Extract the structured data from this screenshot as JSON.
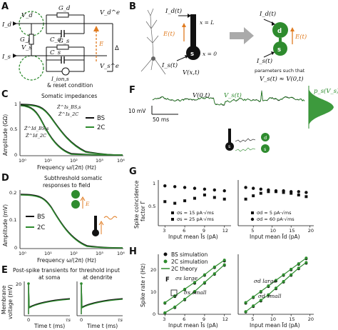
{
  "panels": {
    "A": {
      "letter": "A",
      "i_d": "I_d",
      "i_s": "I_s",
      "v_d": "V_d",
      "v_s": "V_s",
      "g_d": "G_d",
      "c_d": "C_d",
      "g_j": "G_j",
      "g_s": "G_s",
      "c_s": "C_s",
      "v_de": "V_d^e",
      "v_se": "V_s^e",
      "e_label": "E",
      "delta": "Δ",
      "i_ion": "I_ion,s",
      "reset": "& reset condition"
    },
    "B": {
      "letter": "B",
      "id_t": "I_d(t)",
      "x_L": "x = L",
      "e_t": "E(t)",
      "is_t": "I_s(t)",
      "x_0": "x = 0",
      "d": "d",
      "s": "s",
      "v_xt": "V(x,t)",
      "params_line1": "parameters such that",
      "params_line2": "V_s(t) ≈ V(0,t)"
    },
    "C": {
      "letter": "C",
      "title": "Somatic impedances",
      "ylabel": "Amplitude (GΩ)",
      "xlabel": "Frequency ω/(2π) (Hz)",
      "legend": [
        "BS",
        "2C"
      ],
      "curve_labels": [
        "Ẑ^Is_BS,s",
        "Ẑ^Is_2C",
        "Ẑ^Id_BS,s",
        "Ẑ^Id_2C"
      ],
      "yticks": [
        "0",
        "0.5",
        "1"
      ],
      "xticks": [
        "10⁰",
        "10¹",
        "10²",
        "10³",
        "10⁴"
      ]
    },
    "D": {
      "letter": "D",
      "title_line1": "Subthreshold somatic",
      "title_line2": "responses to field",
      "ylabel": "Amplitude (mV)",
      "xlabel": "Frequency ω/(2π) (Hz)",
      "legend": [
        "BS",
        "2C"
      ],
      "yticks": [
        "0",
        "0.1",
        "0.2"
      ],
      "xticks": [
        "10⁰",
        "10¹",
        "10²",
        "10³",
        "10⁴"
      ],
      "e_label": "E"
    },
    "E": {
      "letter": "E",
      "title_line1": "Post-spike transients for threshold input",
      "left_label": "at soma",
      "right_label": "at dendrite",
      "ylabel_line1": "Membrane",
      "ylabel_line2": "voltage (mV)",
      "xlabel": "Time t (ms)",
      "xticks": [
        "0",
        "τs"
      ],
      "ytick": "20"
    },
    "F": {
      "letter": "F",
      "v0t": "V(0,t)",
      "vs": "V_s(t)",
      "ps": "p_s(V_s)",
      "scale_v": "10 mV",
      "scale_t": "50 ms",
      "d": "d",
      "s": "s"
    },
    "G": {
      "letter": "G",
      "ylabel_line1": "Spike coincidence",
      "ylabel_line2": "factor Γ",
      "xlabel_left": "Input mean Īs (pA)",
      "xlabel_right": "Input mean Īd (pA)",
      "left_legend": [
        "σs = 15 pA·√ms",
        "σs = 25 pA·√ms"
      ],
      "right_legend": [
        "σd = 5 pA·√ms",
        "σd = 60 pA·√ms"
      ],
      "yticks": [
        "0.5",
        "1"
      ],
      "left_xticks": [
        "3",
        "6",
        "9",
        "12"
      ],
      "right_xticks": [
        "5",
        "10",
        "15",
        "20"
      ]
    },
    "H": {
      "letter": "H",
      "ylabel": "Spike rate r (Hz)",
      "xlabel_left": "Input mean Īs (pA)",
      "xlabel_right": "Input mean Īd (pA)",
      "legend": [
        "BS simulation",
        "2C simulation",
        "2C theory"
      ],
      "left_annot": [
        "σs large",
        "σs small"
      ],
      "right_annot": [
        "σd large",
        "σd small"
      ],
      "f_marker": "F",
      "yticks": [
        "0",
        "10",
        "20"
      ],
      "left_xticks": [
        "3",
        "6",
        "9",
        "12"
      ],
      "right_xticks": [
        "5",
        "10",
        "15",
        "20"
      ]
    }
  },
  "chart_data": [
    {
      "panel": "G-left",
      "type": "scatter",
      "xlabel": "Input mean Īs (pA)",
      "ylabel": "Spike coincidence factor Γ",
      "ylim": [
        0.45,
        1.0
      ],
      "series": [
        {
          "name": "σs = 15 pA·√ms",
          "marker": "square",
          "x": [
            3,
            4.5,
            6,
            7.5,
            9,
            10.5,
            12
          ],
          "y": [
            0.74,
            0.72,
            0.75,
            0.78,
            0.82,
            0.79,
            0.77
          ]
        },
        {
          "name": "σs = 25 pA·√ms",
          "marker": "circle",
          "x": [
            3,
            4.5,
            6,
            7.5,
            9,
            10.5,
            12
          ],
          "y": [
            0.93,
            0.92,
            0.91,
            0.9,
            0.89,
            0.88,
            0.87
          ]
        }
      ]
    },
    {
      "panel": "G-right",
      "type": "scatter",
      "xlabel": "Input mean Īd (pA)",
      "ylabel": "Spike coincidence factor Γ",
      "ylim": [
        0.45,
        1.0
      ],
      "series": [
        {
          "name": "σd = 5 pA·√ms",
          "marker": "square",
          "x": [
            3,
            5,
            7,
            9,
            11,
            13,
            15,
            17,
            19
          ],
          "y": [
            0.77,
            0.81,
            0.84,
            0.86,
            0.86,
            0.85,
            0.84,
            0.82,
            0.8
          ]
        },
        {
          "name": "σd = 60 pA·√ms",
          "marker": "circle",
          "x": [
            3,
            5,
            7,
            9,
            11,
            13,
            15,
            17,
            19
          ],
          "y": [
            0.91,
            0.9,
            0.89,
            0.88,
            0.87,
            0.87,
            0.86,
            0.86,
            0.85
          ]
        }
      ]
    },
    {
      "panel": "H-left",
      "type": "line",
      "xlabel": "Input mean Īs (pA)",
      "ylabel": "Spike rate r (Hz)",
      "ylim": [
        0,
        27
      ],
      "series": [
        {
          "name": "BS simulation (σs large)",
          "x": [
            3,
            4.5,
            6,
            7.5,
            9,
            10.5,
            12
          ],
          "y": [
            5,
            8,
            11,
            14,
            17.5,
            21,
            24
          ]
        },
        {
          "name": "2C simulation (σs large)",
          "x": [
            3,
            4.5,
            6,
            7.5,
            9,
            10.5,
            12
          ],
          "y": [
            5.2,
            8.3,
            11.3,
            14.4,
            17.8,
            21.3,
            24.4
          ]
        },
        {
          "name": "BS simulation (σs small)",
          "x": [
            3,
            4.5,
            6,
            7.5,
            9,
            10.5,
            12
          ],
          "y": [
            0.5,
            3,
            6.5,
            10,
            14,
            18,
            22
          ]
        },
        {
          "name": "2C simulation (σs small)",
          "x": [
            3,
            4.5,
            6,
            7.5,
            9,
            10.5,
            12
          ],
          "y": [
            0.7,
            3.3,
            6.8,
            10.3,
            14.3,
            18.3,
            22.3
          ]
        }
      ]
    },
    {
      "panel": "H-right",
      "type": "line",
      "xlabel": "Input mean Īd (pA)",
      "ylabel": "Spike rate r (Hz)",
      "ylim": [
        0,
        27
      ],
      "series": [
        {
          "name": "BS simulation (σd large)",
          "x": [
            3,
            5,
            7,
            9,
            11,
            13,
            15,
            17,
            19
          ],
          "y": [
            5,
            7.5,
            10,
            12.5,
            15,
            17.5,
            20,
            22.5,
            25
          ]
        },
        {
          "name": "2C simulation (σd large)",
          "x": [
            3,
            5,
            7,
            9,
            11,
            13,
            15,
            17,
            19
          ],
          "y": [
            5.3,
            7.8,
            10.3,
            12.8,
            15.3,
            17.8,
            20.3,
            22.8,
            25.3
          ]
        },
        {
          "name": "BS simulation (σd small)",
          "x": [
            3,
            5,
            7,
            9,
            11,
            13,
            15,
            17,
            19
          ],
          "y": [
            1,
            3.5,
            6,
            8.5,
            11.5,
            14.5,
            17.5,
            20.5,
            23
          ]
        },
        {
          "name": "2C simulation (σd small)",
          "x": [
            3,
            5,
            7,
            9,
            11,
            13,
            15,
            17,
            19
          ],
          "y": [
            1.2,
            3.8,
            6.3,
            8.8,
            11.8,
            14.8,
            17.8,
            20.8,
            23.3
          ]
        }
      ]
    }
  ]
}
